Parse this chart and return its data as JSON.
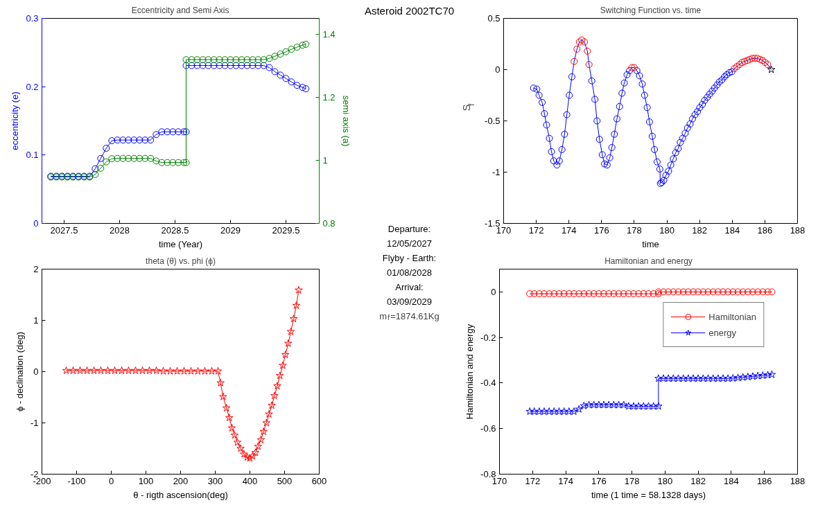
{
  "chart_data": [
    {
      "type": "line",
      "title": "Eccentricity and Semi Axis",
      "xlabel": "time (Year)",
      "ylabel": "eccentricity (e)",
      "y2label": "semi axis (a)",
      "xlim": [
        2027.3,
        2029.8
      ],
      "xticks": [
        2027.5,
        2028,
        2028.5,
        2029,
        2029.5
      ],
      "ylim": [
        0,
        0.3
      ],
      "yticks": [
        0,
        0.1,
        0.2,
        0.3
      ],
      "y2lim": [
        0.8,
        1.45
      ],
      "y2ticks": [
        0.8,
        1,
        1.2,
        1.4
      ],
      "marker": "circle",
      "x": [
        2027.38,
        2027.43,
        2027.48,
        2027.53,
        2027.58,
        2027.63,
        2027.68,
        2027.73,
        2027.78,
        2027.83,
        2027.88,
        2027.93,
        2027.98,
        2028.03,
        2028.08,
        2028.13,
        2028.18,
        2028.23,
        2028.28,
        2028.33,
        2028.38,
        2028.43,
        2028.48,
        2028.53,
        2028.58,
        2028.6,
        2028.6,
        2028.65,
        2028.7,
        2028.75,
        2028.8,
        2028.85,
        2028.9,
        2028.95,
        2029.0,
        2029.05,
        2029.1,
        2029.15,
        2029.2,
        2029.25,
        2029.3,
        2029.35,
        2029.4,
        2029.45,
        2029.5,
        2029.55,
        2029.6,
        2029.65,
        2029.68
      ],
      "series": [
        {
          "color": "#0000ff",
          "values": [
            0.069,
            0.069,
            0.069,
            0.069,
            0.069,
            0.069,
            0.069,
            0.069,
            0.08,
            0.095,
            0.11,
            0.121,
            0.122,
            0.122,
            0.122,
            0.122,
            0.122,
            0.122,
            0.122,
            0.13,
            0.134,
            0.134,
            0.134,
            0.134,
            0.134,
            0.134,
            0.231,
            0.231,
            0.231,
            0.231,
            0.231,
            0.231,
            0.231,
            0.231,
            0.231,
            0.231,
            0.231,
            0.231,
            0.231,
            0.231,
            0.231,
            0.228,
            0.222,
            0.217,
            0.212,
            0.207,
            0.202,
            0.199,
            0.197
          ]
        },
        {
          "color": "#008000",
          "axis": "y2",
          "values": [
            0.947,
            0.947,
            0.947,
            0.947,
            0.947,
            0.947,
            0.947,
            0.947,
            0.955,
            0.975,
            0.995,
            1.005,
            1.006,
            1.006,
            1.006,
            1.006,
            1.006,
            1.006,
            1.006,
            0.998,
            0.993,
            0.993,
            0.993,
            0.993,
            0.993,
            0.993,
            1.319,
            1.319,
            1.319,
            1.319,
            1.319,
            1.319,
            1.319,
            1.319,
            1.319,
            1.319,
            1.319,
            1.319,
            1.319,
            1.319,
            1.319,
            1.323,
            1.33,
            1.337,
            1.344,
            1.352,
            1.359,
            1.365,
            1.368
          ]
        }
      ]
    },
    {
      "type": "scatter",
      "title": "Switching Function vs. time",
      "xlabel": "time",
      "ylabel": "S$_{f}$",
      "xlim": [
        170,
        188
      ],
      "xticks": [
        170,
        172,
        174,
        176,
        178,
        180,
        182,
        184,
        186,
        188
      ],
      "ylim": [
        -1.5,
        0.5
      ],
      "yticks": [
        -1.5,
        -1,
        -0.5,
        0,
        0.5
      ],
      "x": [
        171.83,
        172.03,
        172.17,
        172.36,
        172.5,
        172.63,
        172.8,
        172.93,
        173.07,
        173.26,
        173.41,
        173.57,
        173.73,
        173.87,
        174.02,
        174.18,
        174.32,
        174.49,
        174.64,
        174.78,
        174.95,
        175.13,
        175.23,
        175.4,
        175.59,
        175.72,
        175.87,
        176.04,
        176.18,
        176.34,
        176.5,
        176.63,
        176.78,
        176.94,
        177.1,
        177.25,
        177.39,
        177.56,
        177.71,
        177.85,
        178.0,
        178.16,
        178.32,
        178.49,
        178.63,
        178.79,
        178.93,
        179.1,
        179.24,
        179.4,
        179.57,
        179.6,
        179.68,
        179.81,
        179.94,
        180.1,
        180.24,
        180.39,
        180.54,
        180.69,
        180.82,
        180.96,
        181.12,
        181.26,
        181.42,
        181.57,
        181.72,
        181.87,
        182.01,
        182.17,
        182.31,
        182.47,
        182.61,
        182.77,
        182.91,
        183.07,
        183.21,
        183.37,
        183.52,
        183.66,
        183.82,
        183.98,
        184.13,
        184.29,
        184.45,
        184.6,
        184.76,
        184.92,
        185.07,
        185.23,
        185.38,
        185.54,
        185.7,
        185.85,
        186.01,
        186.17,
        186.39
      ],
      "series": [
        {
          "type": "line",
          "marker": "none",
          "color": "#0000ff",
          "values": [
            -0.18,
            -0.19,
            -0.25,
            -0.32,
            -0.43,
            -0.54,
            -0.67,
            -0.8,
            -0.89,
            -0.93,
            -0.89,
            -0.78,
            -0.63,
            -0.44,
            -0.25,
            -0.07,
            0.08,
            0.2,
            0.27,
            0.29,
            0.27,
            0.18,
            0.05,
            -0.11,
            -0.29,
            -0.5,
            -0.68,
            -0.83,
            -0.92,
            -0.93,
            -0.86,
            -0.76,
            -0.63,
            -0.48,
            -0.36,
            -0.23,
            -0.13,
            -0.05,
            -0.01,
            0.02,
            0.02,
            -0.01,
            -0.06,
            -0.14,
            -0.25,
            -0.37,
            -0.51,
            -0.65,
            -0.78,
            -0.9,
            -0.97,
            -1.11,
            -1.1,
            -1.08,
            -1.03,
            -0.99,
            -0.93,
            -0.87,
            -0.81,
            -0.77,
            -0.71,
            -0.67,
            -0.62,
            -0.57,
            -0.53,
            -0.48,
            -0.44,
            -0.41,
            -0.37,
            -0.34,
            -0.3,
            -0.27,
            -0.24,
            -0.21,
            -0.18,
            -0.15,
            -0.12,
            -0.1,
            -0.07,
            -0.05,
            -0.03,
            -0.02,
            0.01,
            0.03,
            0.05,
            0.07,
            0.08,
            0.09,
            0.1,
            0.11,
            0.11,
            0.11,
            0.1,
            0.09,
            0.07,
            0.05,
            0
          ]
        },
        {
          "marker": "circle",
          "color": "#0000ff",
          "x": [
            171.83,
            172.03,
            172.17,
            172.36,
            172.5,
            172.63,
            172.8,
            172.93,
            173.07,
            173.26,
            173.41,
            173.57,
            173.73,
            173.87,
            174.02,
            174.18,
            null,
            175.4,
            175.59,
            175.72,
            175.87,
            176.04,
            176.18,
            176.34,
            176.5,
            176.63,
            176.78,
            176.94,
            177.1,
            177.25,
            177.39,
            177.56,
            177.71,
            null,
            178.16,
            178.32,
            178.49,
            178.63,
            178.79,
            178.93,
            179.1,
            179.24,
            179.4,
            179.57,
            179.6,
            179.68,
            179.81,
            179.94,
            180.1,
            180.24,
            180.39,
            180.54,
            180.69,
            180.82,
            180.96,
            181.12,
            181.26,
            181.42,
            181.57,
            181.72,
            181.87,
            182.01,
            182.17,
            182.31,
            182.47,
            182.61,
            182.77,
            182.91,
            183.07,
            183.21,
            183.37,
            183.52,
            183.66,
            183.82,
            183.98
          ],
          "values": [
            -0.18,
            -0.19,
            -0.25,
            -0.32,
            -0.43,
            -0.54,
            -0.67,
            -0.8,
            -0.89,
            -0.93,
            -0.89,
            -0.78,
            -0.63,
            -0.44,
            -0.25,
            -0.07,
            null,
            -0.11,
            -0.29,
            -0.5,
            -0.68,
            -0.83,
            -0.92,
            -0.93,
            -0.86,
            -0.76,
            -0.63,
            -0.48,
            -0.36,
            -0.23,
            -0.13,
            -0.05,
            -0.01,
            null,
            -0.01,
            -0.06,
            -0.14,
            -0.25,
            -0.37,
            -0.51,
            -0.65,
            -0.78,
            -0.9,
            -0.97,
            -1.11,
            -1.1,
            -1.08,
            -1.03,
            -0.99,
            -0.93,
            -0.87,
            -0.81,
            -0.77,
            -0.71,
            -0.67,
            -0.62,
            -0.57,
            -0.53,
            -0.48,
            -0.44,
            -0.41,
            -0.37,
            -0.34,
            -0.3,
            -0.27,
            -0.24,
            -0.21,
            -0.18,
            -0.15,
            -0.12,
            -0.1,
            -0.07,
            -0.05,
            -0.03,
            -0.02
          ]
        },
        {
          "marker": "circle",
          "color": "#ff0000",
          "x": [
            174.32,
            174.49,
            174.64,
            174.78,
            174.95,
            175.13,
            175.23,
            177.85,
            178.0,
            184.13,
            184.29,
            184.45,
            184.6,
            184.76,
            184.92,
            185.07,
            185.23,
            185.38,
            185.54,
            185.7,
            185.85,
            186.01,
            186.17
          ],
          "values": [
            0.08,
            0.2,
            0.27,
            0.29,
            0.27,
            0.18,
            0.05,
            0.02,
            0.02,
            0.01,
            0.03,
            0.05,
            0.07,
            0.08,
            0.09,
            0.1,
            0.11,
            0.11,
            0.11,
            0.1,
            0.09,
            0.07,
            0.05
          ]
        },
        {
          "marker": "star",
          "color": "#000000",
          "x": [
            186.39
          ],
          "values": [
            0
          ]
        }
      ]
    },
    {
      "type": "line",
      "title": "theta (θ) vs. phi (ϕ)",
      "xlabel": "θ - rigth ascension(deg)",
      "ylabel": "ϕ - declination (deg)",
      "xlim": [
        -200,
        600
      ],
      "xticks": [
        -200,
        -100,
        0,
        100,
        200,
        300,
        400,
        500,
        600
      ],
      "ylim": [
        -2,
        2
      ],
      "yticks": [
        -2,
        -1,
        0,
        1,
        2
      ],
      "marker": "star",
      "x": [
        -130,
        -110,
        -90,
        -70,
        -50,
        -30,
        -10,
        10,
        30,
        50,
        70,
        90,
        110,
        130,
        150,
        170,
        190,
        210,
        230,
        250,
        270,
        290,
        308,
        315.3,
        322.8,
        332.3,
        340.5,
        348,
        356,
        363.8,
        373.2,
        382.7,
        392,
        399.7,
        407.9,
        416,
        423.6,
        431.8,
        439.4,
        447.6,
        455.1,
        463.3,
        470.9,
        479,
        486.6,
        494.8,
        502.4,
        510.6,
        518.1,
        526.3,
        533.9,
        540.8
      ],
      "series": [
        {
          "color": "#ff0000",
          "values": [
            0.02,
            0.02,
            0.02,
            0.02,
            0.02,
            0.02,
            0.02,
            0.02,
            0.02,
            0.02,
            0.02,
            0.02,
            0.02,
            0.02,
            0.01,
            0.01,
            0.01,
            0.01,
            0.01,
            0.01,
            0.01,
            0.01,
            0.01,
            -0.22,
            -0.49,
            -0.71,
            -0.9,
            -1.1,
            -1.24,
            -1.38,
            -1.5,
            -1.61,
            -1.67,
            -1.69,
            -1.65,
            -1.58,
            -1.46,
            -1.33,
            -1.17,
            -1.0,
            -0.83,
            -0.66,
            -0.47,
            -0.28,
            -0.08,
            0.12,
            0.33,
            0.55,
            0.78,
            1.03,
            1.29,
            1.59
          ]
        }
      ]
    },
    {
      "type": "line",
      "title": "Hamiltonian and energy",
      "xlabel": "time (1 time = 58.1328 days)",
      "ylabel": "Hamiltonian and energy",
      "xlim": [
        170,
        188
      ],
      "xticks": [
        170,
        172,
        174,
        176,
        178,
        180,
        182,
        184,
        186,
        188
      ],
      "ylim": [
        -0.8,
        0.1
      ],
      "yticks": [
        -0.8,
        -0.6,
        -0.4,
        -0.2,
        0
      ],
      "legend": "top right",
      "x": [
        171.83,
        172.1,
        172.4,
        172.7,
        173.0,
        173.3,
        173.6,
        173.9,
        174.2,
        174.5,
        174.8,
        175.1,
        175.4,
        175.7,
        176.0,
        176.3,
        176.6,
        176.9,
        177.2,
        177.5,
        177.8,
        178.1,
        178.4,
        178.7,
        179.0,
        179.3,
        179.6,
        179.6,
        179.9,
        180.2,
        180.5,
        180.8,
        181.1,
        181.4,
        181.7,
        182.0,
        182.3,
        182.6,
        182.9,
        183.2,
        183.5,
        183.8,
        184.1,
        184.4,
        184.7,
        185.0,
        185.3,
        185.6,
        185.9,
        186.2,
        186.45
      ],
      "series": [
        {
          "name": "Hamiltonian",
          "color": "#ff0000",
          "marker": "circle",
          "values": [
            -0.008,
            -0.008,
            -0.008,
            -0.008,
            -0.008,
            -0.008,
            -0.008,
            -0.008,
            -0.008,
            -0.008,
            -0.008,
            -0.008,
            -0.008,
            -0.008,
            -0.008,
            -0.008,
            -0.008,
            -0.008,
            -0.008,
            -0.008,
            -0.008,
            -0.008,
            -0.008,
            -0.008,
            -0.008,
            -0.008,
            -0.008,
            0,
            0,
            0,
            0,
            0,
            0,
            0,
            0,
            0,
            0,
            0,
            0,
            0,
            0,
            0,
            0,
            0,
            0,
            0,
            0,
            0,
            0,
            0,
            0
          ]
        },
        {
          "name": "energy",
          "color": "#0000ff",
          "marker": "star",
          "values": [
            -0.525,
            -0.525,
            -0.525,
            -0.525,
            -0.525,
            -0.525,
            -0.525,
            -0.525,
            -0.525,
            -0.525,
            -0.515,
            -0.5,
            -0.496,
            -0.496,
            -0.496,
            -0.496,
            -0.496,
            -0.496,
            -0.496,
            -0.496,
            -0.502,
            -0.502,
            -0.502,
            -0.502,
            -0.502,
            -0.502,
            -0.502,
            -0.38,
            -0.38,
            -0.38,
            -0.38,
            -0.38,
            -0.38,
            -0.38,
            -0.38,
            -0.38,
            -0.38,
            -0.38,
            -0.38,
            -0.38,
            -0.38,
            -0.38,
            -0.379,
            -0.377,
            -0.375,
            -0.373,
            -0.371,
            -0.369,
            -0.367,
            -0.365,
            -0.363
          ]
        }
      ]
    },
    {
      "type": "other",
      "title": "Asteroid 2002TC70",
      "annotations": [
        "Departure:",
        "12/05/2027",
        "Flyby - Earth:",
        "01/08/2028",
        "Arrival:",
        "03/09/2029",
        "m$_{f}$=1874.61Kg"
      ]
    }
  ]
}
